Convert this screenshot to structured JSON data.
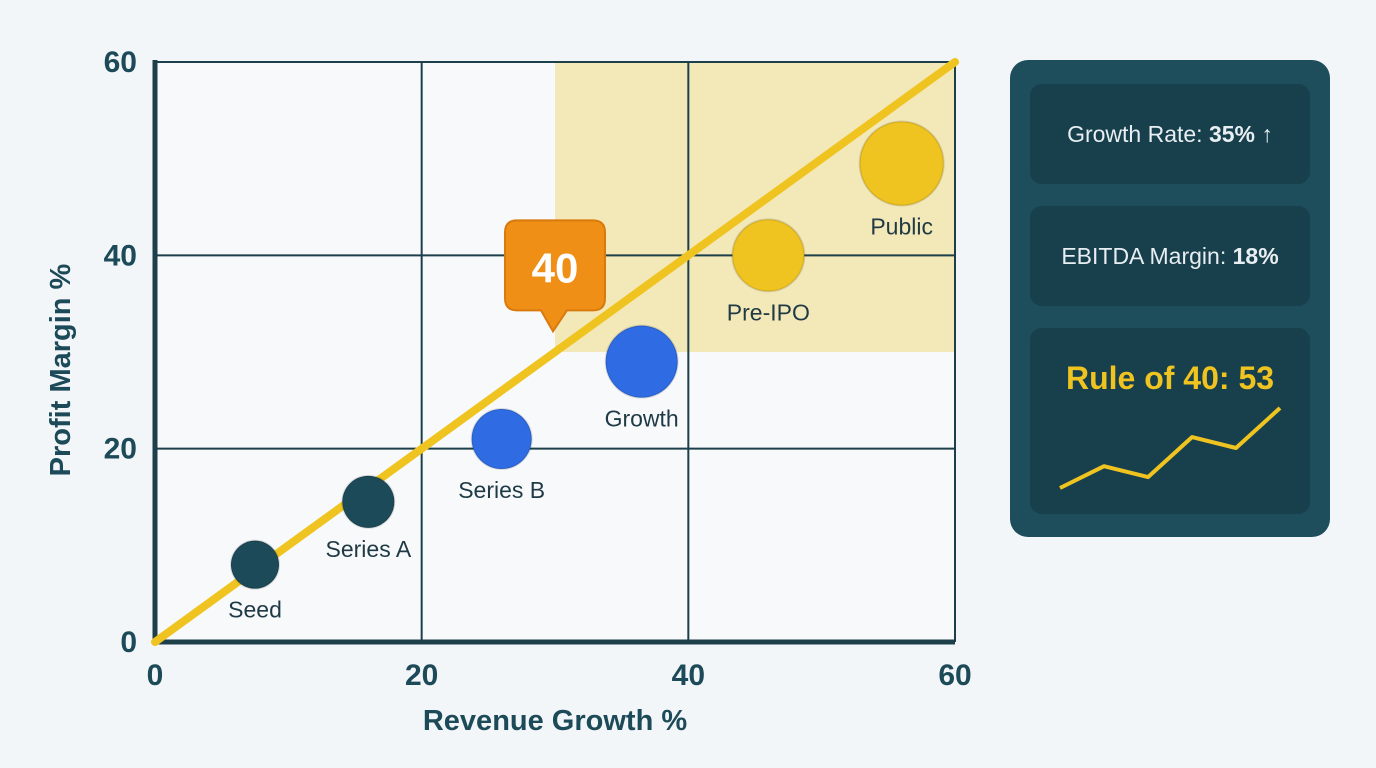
{
  "chart_data": {
    "type": "scatter",
    "title": "",
    "xlabel": "Revenue Growth %",
    "ylabel": "Profit Margin %",
    "xlim": [
      0,
      60
    ],
    "ylim": [
      0,
      60
    ],
    "xticks": [
      "0",
      "20",
      "40",
      "60"
    ],
    "yticks": [
      "0",
      "20",
      "40",
      "60"
    ],
    "grid": true,
    "reference_line": {
      "from": [
        0,
        0
      ],
      "to": [
        60,
        60
      ],
      "color": "#f0c420"
    },
    "highlight_region": {
      "x": [
        30,
        60
      ],
      "y": [
        30,
        60
      ],
      "color": "#f3e8b8"
    },
    "points": [
      {
        "label": "Seed",
        "x": 7.5,
        "y": 8,
        "color": "#1d4a58"
      },
      {
        "label": "Series A",
        "x": 16,
        "y": 14.5,
        "color": "#1d4a58"
      },
      {
        "label": "Series B",
        "x": 26,
        "y": 21,
        "color": "#2f6be2"
      },
      {
        "label": "Growth",
        "x": 36.5,
        "y": 29,
        "color": "#2f6be2"
      },
      {
        "label": "Pre-IPO",
        "x": 46,
        "y": 40,
        "color": "#f0c420"
      },
      {
        "label": "Public",
        "x": 56,
        "y": 49.5,
        "color": "#f0c420"
      }
    ],
    "annotation": {
      "text": "40",
      "x": 30,
      "y": 40,
      "color": "#ef8f16"
    }
  },
  "panel": {
    "growth_label": "Growth Rate: ",
    "growth_value": "35%",
    "growth_arrow": "↑",
    "ebitda_label": "EBITDA Margin: ",
    "ebitda_value": "18%",
    "rule_title": "Rule of 40: 53",
    "sparkline": [
      16,
      22,
      19,
      30,
      27,
      38
    ],
    "accent_color": "#f0c420"
  }
}
